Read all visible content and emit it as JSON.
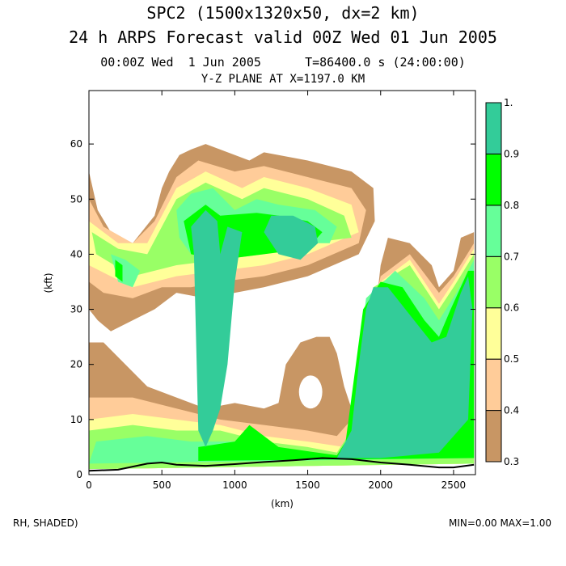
{
  "chart_data": {
    "type": "heatmap",
    "title": "SPC2 (1500x1320x50, dx=2 km)",
    "subtitle": "24 h ARPS Forecast valid 00Z Wed 01 Jun 2005",
    "time_label": "00:00Z Wed  1 Jun 2005      T=86400.0 s (24:00:00)",
    "plane_label": "Y-Z PLANE AT X=1197.0 KM",
    "xlabel": "(km)",
    "ylabel": "(kft)",
    "xlim": [
      0,
      2650
    ],
    "ylim": [
      0,
      69.7
    ],
    "xticks": [
      0,
      500,
      1000,
      1500,
      2000,
      2500
    ],
    "yticks": [
      0,
      10,
      20,
      30,
      40,
      50,
      60
    ],
    "colorbar": {
      "levels": [
        0.3,
        0.4,
        0.5,
        0.6,
        0.7,
        0.8,
        0.9,
        1.0
      ],
      "labels": [
        "0.3",
        "0.4",
        "0.5",
        "0.6",
        "0.7",
        "0.8",
        "0.9",
        "1."
      ],
      "colors": [
        "#c89664",
        "#ffcc99",
        "#ffff99",
        "#99ff66",
        "#66ff99",
        "#00ff00",
        "#33cc99"
      ]
    },
    "field_label": "RH, SHADED)",
    "minmax_label": "MIN=0.00 MAX=1.00",
    "contour_regions": [
      {
        "level": 0.3,
        "polygons": [
          [
            [
              0,
              55
            ],
            [
              60,
              48
            ],
            [
              150,
              44
            ],
            [
              300,
              42
            ],
            [
              450,
              47
            ],
            [
              500,
              52
            ],
            [
              550,
              55
            ],
            [
              620,
              58
            ],
            [
              700,
              59
            ],
            [
              800,
              60
            ],
            [
              900,
              59
            ],
            [
              1100,
              57
            ],
            [
              1200,
              58.5
            ],
            [
              1500,
              57
            ],
            [
              1800,
              55
            ],
            [
              1950,
              52
            ],
            [
              1960,
              46
            ],
            [
              1850,
              40
            ],
            [
              1500,
              36
            ],
            [
              1200,
              34
            ],
            [
              1000,
              33
            ],
            [
              800,
              32
            ],
            [
              600,
              33
            ],
            [
              450,
              30
            ],
            [
              300,
              28
            ],
            [
              150,
              26
            ],
            [
              60,
              28
            ],
            [
              0,
              30
            ]
          ],
          [
            [
              0,
              24
            ],
            [
              100,
              24
            ],
            [
              250,
              20
            ],
            [
              400,
              16
            ],
            [
              600,
              14
            ],
            [
              800,
              12
            ],
            [
              1000,
              13
            ],
            [
              1200,
              12
            ],
            [
              1300,
              13
            ],
            [
              1350,
              20
            ],
            [
              1450,
              24
            ],
            [
              1560,
              25
            ],
            [
              1650,
              25
            ],
            [
              1700,
              22
            ],
            [
              1750,
              16
            ],
            [
              1800,
              12
            ],
            [
              1900,
              14
            ],
            [
              2000,
              38
            ],
            [
              2050,
              43
            ],
            [
              2200,
              42
            ],
            [
              2350,
              38
            ],
            [
              2400,
              34
            ],
            [
              2500,
              37
            ],
            [
              2550,
              43
            ],
            [
              2640,
              44
            ],
            [
              2640,
              2
            ],
            [
              0,
              1
            ]
          ]
        ]
      },
      {
        "level": 0.4,
        "polygons": [
          [
            [
              0,
              50
            ],
            [
              100,
              45
            ],
            [
              300,
              42
            ],
            [
              450,
              46
            ],
            [
              600,
              54
            ],
            [
              750,
              57
            ],
            [
              1000,
              55
            ],
            [
              1200,
              56
            ],
            [
              1500,
              54
            ],
            [
              1800,
              52
            ],
            [
              1900,
              48
            ],
            [
              1850,
              42
            ],
            [
              1500,
              38
            ],
            [
              1200,
              36
            ],
            [
              900,
              35
            ],
            [
              700,
              34
            ],
            [
              500,
              34
            ],
            [
              300,
              32
            ],
            [
              100,
              33
            ],
            [
              0,
              35
            ]
          ],
          [
            [
              0,
              14
            ],
            [
              300,
              14
            ],
            [
              600,
              12
            ],
            [
              900,
              10
            ],
            [
              1200,
              9
            ],
            [
              1500,
              8
            ],
            [
              1700,
              7
            ],
            [
              1800,
              10
            ],
            [
              2000,
              36
            ],
            [
              2200,
              40
            ],
            [
              2400,
              33
            ],
            [
              2500,
              36
            ],
            [
              2640,
              42
            ],
            [
              2640,
              2
            ],
            [
              0,
              1
            ]
          ]
        ]
      },
      {
        "level": 0.5,
        "polygons": [
          [
            [
              0,
              46
            ],
            [
              200,
              42
            ],
            [
              400,
              42
            ],
            [
              600,
              52
            ],
            [
              800,
              55
            ],
            [
              1050,
              52
            ],
            [
              1200,
              54
            ],
            [
              1500,
              52
            ],
            [
              1800,
              49
            ],
            [
              1850,
              44
            ],
            [
              1500,
              40
            ],
            [
              1200,
              38
            ],
            [
              900,
              37
            ],
            [
              600,
              36
            ],
            [
              300,
              34
            ],
            [
              0,
              38
            ]
          ],
          [
            [
              0,
              10
            ],
            [
              300,
              11
            ],
            [
              600,
              10
            ],
            [
              900,
              9
            ],
            [
              1200,
              7
            ],
            [
              1500,
              6
            ],
            [
              1750,
              5
            ],
            [
              1850,
              12
            ],
            [
              2000,
              35
            ],
            [
              2200,
              39
            ],
            [
              2400,
              31
            ],
            [
              2500,
              35
            ],
            [
              2640,
              41
            ],
            [
              2640,
              2
            ],
            [
              0,
              1
            ]
          ]
        ]
      },
      {
        "level": 0.6,
        "polygons": [
          [
            [
              20,
              44
            ],
            [
              200,
              41
            ],
            [
              400,
              40
            ],
            [
              600,
              50
            ],
            [
              800,
              53
            ],
            [
              1050,
              50
            ],
            [
              1200,
              52
            ],
            [
              1500,
              50
            ],
            [
              1750,
              47
            ],
            [
              1800,
              43
            ],
            [
              1500,
              42
            ],
            [
              1200,
              40
            ],
            [
              900,
              39
            ],
            [
              600,
              38
            ],
            [
              300,
              36
            ],
            [
              50,
              40
            ]
          ],
          [
            [
              0,
              8
            ],
            [
              300,
              9
            ],
            [
              600,
              8
            ],
            [
              900,
              8
            ],
            [
              1200,
              6
            ],
            [
              1500,
              5
            ],
            [
              1700,
              4
            ],
            [
              1800,
              8
            ],
            [
              1950,
              34
            ],
            [
              2200,
              38
            ],
            [
              2400,
              30
            ],
            [
              2500,
              34
            ],
            [
              2640,
              40
            ],
            [
              2640,
              2
            ],
            [
              0,
              1
            ]
          ]
        ]
      },
      {
        "level": 0.7,
        "polygons": [
          [
            [
              150,
              40
            ],
            [
              250,
              39
            ],
            [
              350,
              37
            ],
            [
              300,
              34
            ],
            [
              200,
              35
            ]
          ],
          [
            [
              600,
              48
            ],
            [
              700,
              51
            ],
            [
              850,
              52
            ],
            [
              1000,
              48
            ],
            [
              1150,
              50
            ],
            [
              1300,
              49
            ],
            [
              1550,
              48
            ],
            [
              1700,
              45
            ],
            [
              1650,
              42
            ],
            [
              1400,
              42
            ],
            [
              1200,
              41
            ],
            [
              900,
              40
            ],
            [
              700,
              40
            ],
            [
              620,
              43
            ]
          ],
          [
            [
              50,
              6
            ],
            [
              400,
              7
            ],
            [
              700,
              6
            ],
            [
              1000,
              6
            ],
            [
              1400,
              4
            ],
            [
              1700,
              3.5
            ],
            [
              1780,
              6
            ],
            [
              1900,
              32
            ],
            [
              2100,
              37
            ],
            [
              2300,
              32
            ],
            [
              2400,
              28
            ],
            [
              2520,
              33
            ],
            [
              2640,
              39
            ],
            [
              2640,
              3
            ],
            [
              0,
              2
            ]
          ]
        ]
      },
      {
        "level": 0.8,
        "polygons": [
          [
            [
              180,
              39
            ],
            [
              230,
              38
            ],
            [
              230,
              35
            ],
            [
              180,
              36
            ]
          ],
          [
            [
              650,
              46
            ],
            [
              800,
              49
            ],
            [
              900,
              47
            ],
            [
              1150,
              47.5
            ],
            [
              1300,
              47
            ],
            [
              1500,
              46
            ],
            [
              1600,
              44
            ],
            [
              1500,
              41
            ],
            [
              1200,
              40
            ],
            [
              900,
              39
            ],
            [
              700,
              40
            ]
          ],
          [
            [
              750,
              5
            ],
            [
              1000,
              6
            ],
            [
              1100,
              9
            ],
            [
              1300,
              5
            ],
            [
              1700,
              3.5
            ],
            [
              1760,
              6
            ],
            [
              1880,
              30
            ],
            [
              2000,
              35
            ],
            [
              2150,
              34
            ],
            [
              2300,
              28
            ],
            [
              2400,
              25
            ],
            [
              2480,
              30
            ],
            [
              2600,
              37
            ],
            [
              2640,
              37
            ],
            [
              2640,
              3
            ],
            [
              750,
              2.5
            ]
          ]
        ]
      },
      {
        "level": 0.9,
        "polygons": [
          [
            [
              700,
              45
            ],
            [
              800,
              48
            ],
            [
              880,
              46
            ],
            [
              900,
              40
            ],
            [
              950,
              45
            ],
            [
              1050,
              44
            ],
            [
              1000,
              35
            ],
            [
              950,
              20
            ],
            [
              900,
              12
            ],
            [
              850,
              8
            ],
            [
              800,
              5
            ],
            [
              750,
              8
            ],
            [
              720,
              40
            ]
          ],
          [
            [
              1200,
              44
            ],
            [
              1250,
              47
            ],
            [
              1400,
              47
            ],
            [
              1550,
              45
            ],
            [
              1570,
              42
            ],
            [
              1450,
              39
            ],
            [
              1300,
              40
            ]
          ],
          [
            [
              1700,
              3
            ],
            [
              1800,
              8
            ],
            [
              1850,
              20
            ],
            [
              1900,
              30
            ],
            [
              1950,
              34
            ],
            [
              2050,
              34
            ],
            [
              2200,
              29
            ],
            [
              2350,
              24
            ],
            [
              2450,
              25
            ],
            [
              2550,
              33
            ],
            [
              2600,
              36
            ],
            [
              2630,
              30
            ],
            [
              2600,
              10
            ],
            [
              2400,
              4
            ],
            [
              2000,
              3
            ]
          ]
        ]
      }
    ],
    "dry_hole": {
      "center": [
        1520,
        15
      ],
      "radius": [
        80,
        3
      ]
    },
    "terrain": [
      [
        0,
        0.7
      ],
      [
        200,
        0.9
      ],
      [
        400,
        2
      ],
      [
        500,
        2.2
      ],
      [
        600,
        1.8
      ],
      [
        800,
        1.6
      ],
      [
        1000,
        1.9
      ],
      [
        1200,
        2.3
      ],
      [
        1400,
        2.6
      ],
      [
        1600,
        3
      ],
      [
        1800,
        2.8
      ],
      [
        2000,
        2.2
      ],
      [
        2200,
        1.8
      ],
      [
        2400,
        1.3
      ],
      [
        2500,
        1.3
      ],
      [
        2640,
        1.8
      ]
    ]
  }
}
